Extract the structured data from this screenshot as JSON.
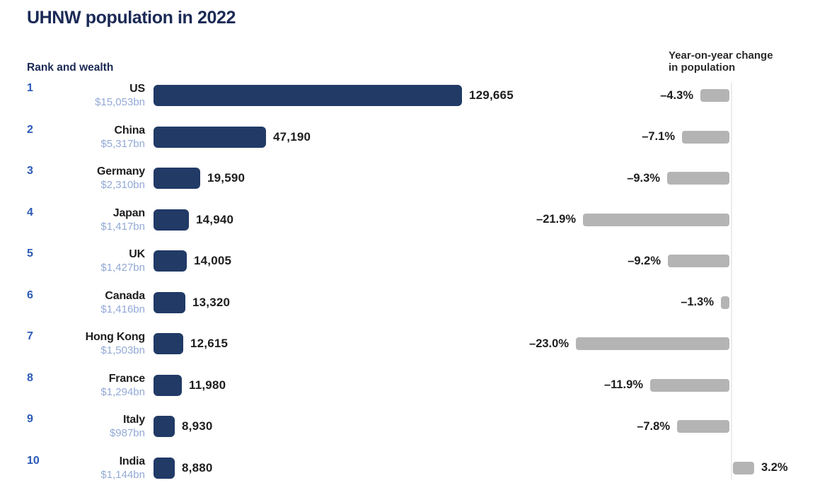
{
  "title": "UHNW population in 2022",
  "left_header": "Rank and wealth",
  "right_header": {
    "line1": "Year-on-year change",
    "line2": "in population"
  },
  "colors": {
    "title_navy": "#1b2a56",
    "bar_navy": "#213a66",
    "rank_blue": "#2b5ab8",
    "wealth_blue": "#92a9d6",
    "gray_bar": "#b4b4b4",
    "text_dark": "#1e1e1e",
    "axis_line": "#ececec"
  },
  "chart_data": {
    "type": "bar",
    "orientation": "horizontal",
    "title": "UHNW population in 2022",
    "categories": [
      "US",
      "China",
      "Germany",
      "Japan",
      "UK",
      "Canada",
      "Hong Kong",
      "France",
      "Italy",
      "India"
    ],
    "ranks": [
      "1",
      "2",
      "3",
      "4",
      "5",
      "6",
      "7",
      "8",
      "9",
      "10"
    ],
    "wealth_labels": [
      "$15,053bn",
      "$5,317bn",
      "$2,310bn",
      "$1,417bn",
      "$1,427bn",
      "$1,416bn",
      "$1,503bn",
      "$1,294bn",
      "$987bn",
      "$1,144bn"
    ],
    "series": [
      {
        "name": "UHNW population 2022",
        "values": [
          129665,
          47190,
          19590,
          14940,
          14005,
          13320,
          12615,
          11980,
          8930,
          8880
        ],
        "labels": [
          "129,665",
          "47,190",
          "19,590",
          "14,940",
          "14,005",
          "13,320",
          "12,615",
          "11,980",
          "8,930",
          "8,880"
        ]
      },
      {
        "name": "Year-on-year change in population (%)",
        "values": [
          -4.3,
          -7.1,
          -9.3,
          -21.9,
          -9.2,
          -1.3,
          -23.0,
          -11.9,
          -7.8,
          3.2
        ],
        "labels": [
          "–4.3%",
          "–7.1%",
          "–9.3%",
          "–21.9%",
          "–9.2%",
          "–1.3%",
          "–23.0%",
          "–11.9%",
          "–7.8%",
          "3.2%"
        ]
      }
    ],
    "layout": {
      "grid": false,
      "legend": false,
      "population_axis_max": 129665,
      "yoy_axis_note": "negative bars extend left from zero axis, positive to the right"
    }
  }
}
